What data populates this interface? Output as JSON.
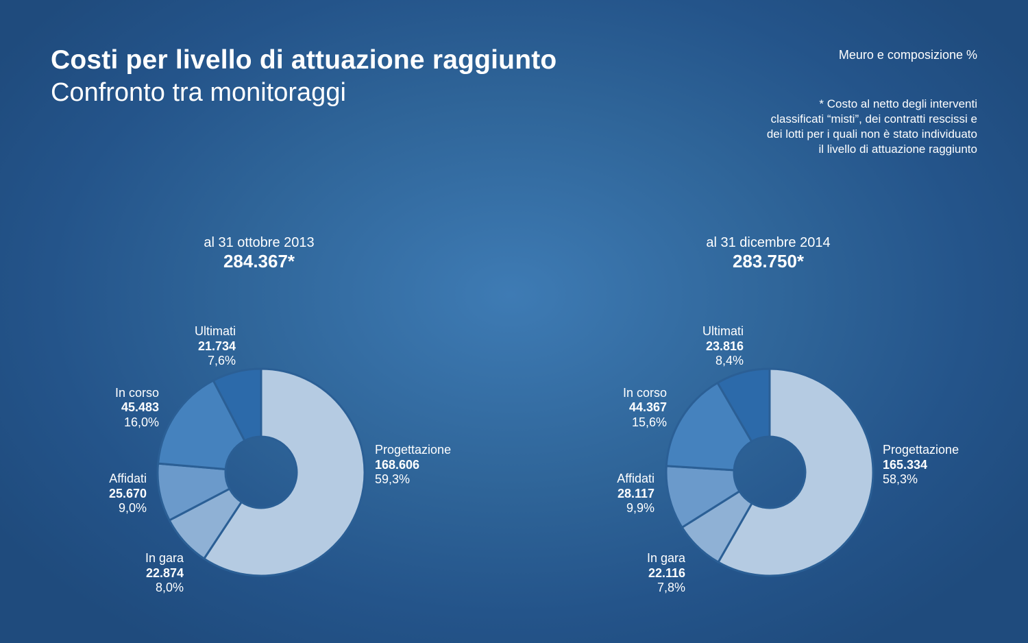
{
  "header": {
    "title": "Costi per livello di attuazione raggiunto",
    "subtitle": "Confronto tra monitoraggi",
    "units": "Meuro e composizione %",
    "note_lines": [
      "* Costo al netto degli interventi",
      "classificati “misti”, dei contratti rescissi e",
      "dei lotti per i quali non è stato individuato",
      "il livello di attuazione raggiunto"
    ]
  },
  "chart_data": [
    {
      "type": "pie",
      "variant": "donut",
      "heading": "al 31 ottobre 2013",
      "total_label": "284.367*",
      "total": 284367,
      "slices": [
        {
          "name": "Progettazione",
          "value_label": "168.606",
          "value": 168606,
          "percent_label": "59,3%",
          "percent": 59.3,
          "color": "#b5cbe2"
        },
        {
          "name": "In gara",
          "value_label": "22.874",
          "value": 22874,
          "percent_label": "8,0%",
          "percent": 8.0,
          "color": "#8fb1d5"
        },
        {
          "name": "Affidati",
          "value_label": "25.670",
          "value": 25670,
          "percent_label": "9,0%",
          "percent": 9.0,
          "color": "#6b9acb"
        },
        {
          "name": "In corso",
          "value_label": "45.483",
          "value": 45483,
          "percent_label": "16,0%",
          "percent": 16.0,
          "color": "#4582be"
        },
        {
          "name": "Ultimati",
          "value_label": "21.734",
          "value": 21734,
          "percent_label": "7,6%",
          "percent": 7.6,
          "color": "#2c6aaa"
        }
      ]
    },
    {
      "type": "pie",
      "variant": "donut",
      "heading": "al 31 dicembre 2014",
      "total_label": "283.750*",
      "total": 283750,
      "slices": [
        {
          "name": "Progettazione",
          "value_label": "165.334",
          "value": 165334,
          "percent_label": "58,3%",
          "percent": 58.3,
          "color": "#b5cbe2"
        },
        {
          "name": "In gara",
          "value_label": "22.116",
          "value": 22116,
          "percent_label": "7,8%",
          "percent": 7.8,
          "color": "#8fb1d5"
        },
        {
          "name": "Affidati",
          "value_label": "28.117",
          "value": 28117,
          "percent_label": "9,9%",
          "percent": 9.9,
          "color": "#6b9acb"
        },
        {
          "name": "In corso",
          "value_label": "44.367",
          "value": 44367,
          "percent_label": "15,6%",
          "percent": 15.6,
          "color": "#4582be"
        },
        {
          "name": "Ultimati",
          "value_label": "23.816",
          "value": 23816,
          "percent_label": "8,4%",
          "percent": 8.4,
          "color": "#2c6aaa"
        }
      ]
    }
  ]
}
